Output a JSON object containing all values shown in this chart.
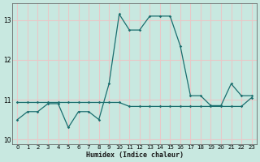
{
  "xlabel": "Humidex (Indice chaleur)",
  "background_color": "#c8e8e0",
  "grid_color": "#e8c8c8",
  "line_color": "#1a6e6e",
  "xlim": [
    -0.5,
    23.5
  ],
  "ylim": [
    9.88,
    13.42
  ],
  "yticks": [
    10,
    11,
    12,
    13
  ],
  "xticks": [
    0,
    1,
    2,
    3,
    4,
    5,
    6,
    7,
    8,
    9,
    10,
    11,
    12,
    13,
    14,
    15,
    16,
    17,
    18,
    19,
    20,
    21,
    22,
    23
  ],
  "curve1_x": [
    0,
    1,
    2,
    3,
    4,
    5,
    6,
    7,
    8,
    9,
    10,
    11,
    12,
    13,
    14,
    15,
    16,
    17,
    18,
    19,
    20,
    21,
    22,
    23
  ],
  "curve1_y": [
    10.5,
    10.7,
    10.7,
    10.9,
    10.9,
    10.3,
    10.7,
    10.7,
    10.5,
    11.4,
    13.15,
    12.75,
    12.75,
    13.1,
    13.1,
    13.1,
    12.35,
    11.1,
    11.1,
    10.85,
    10.85,
    11.4,
    11.1,
    11.1
  ],
  "curve2_x": [
    0,
    1,
    2,
    3,
    4,
    5,
    6,
    7,
    8,
    9,
    10,
    11,
    12,
    13,
    14,
    15,
    16,
    17,
    18,
    19,
    20,
    21,
    22,
    23
  ],
  "curve2_y": [
    10.93,
    10.93,
    10.93,
    10.93,
    10.93,
    10.93,
    10.93,
    10.93,
    10.93,
    10.93,
    10.93,
    10.83,
    10.83,
    10.83,
    10.83,
    10.83,
    10.83,
    10.83,
    10.83,
    10.83,
    10.83,
    10.83,
    10.83,
    11.05
  ]
}
